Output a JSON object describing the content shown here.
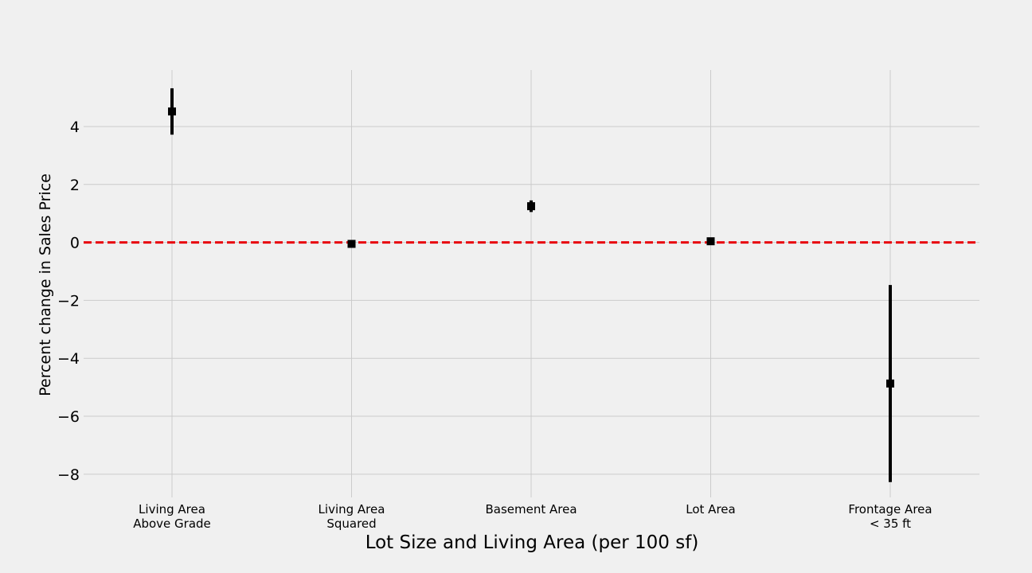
{
  "chart_data": {
    "type": "scatter",
    "title": "",
    "xlabel": "Lot Size and Living Area (per 100 sf)",
    "ylabel": "Percent change in Sales Price",
    "ylim": [
      -8.8,
      5.95
    ],
    "yticks": [
      -8,
      -6,
      -4,
      -2,
      0,
      2,
      4
    ],
    "ytick_labels": [
      "−8",
      "−6",
      "−4",
      "−2",
      "0",
      "2",
      "4"
    ],
    "grid": true,
    "reference_line": {
      "y": 0,
      "style": "dashed",
      "color": "#e8000b"
    },
    "categories": [
      [
        "Living Area",
        "Above Grade"
      ],
      [
        "Living Area",
        "Squared"
      ],
      [
        "Basement Area"
      ],
      [
        "Lot Area"
      ],
      [
        "Frontage Area",
        "< 35 ft"
      ]
    ],
    "points": [
      {
        "estimate": 4.52,
        "low": 3.72,
        "high": 5.32
      },
      {
        "estimate": -0.05,
        "low": -0.12,
        "high": 0.02
      },
      {
        "estimate": 1.25,
        "low": 1.05,
        "high": 1.45
      },
      {
        "estimate": 0.04,
        "low": 0.0,
        "high": 0.08
      },
      {
        "estimate": -4.87,
        "low": -8.27,
        "high": -1.47
      }
    ],
    "marker_color": "#000000"
  }
}
